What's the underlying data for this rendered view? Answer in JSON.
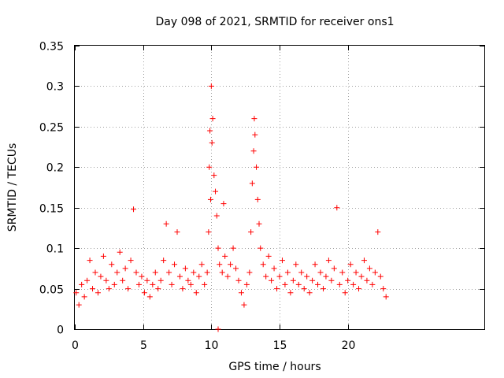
{
  "chart_data": {
    "type": "scatter",
    "title": "Day 098 of 2021, SRMTID for receiver ons1",
    "xlabel": "GPS time / hours",
    "ylabel": "SRMTID / TECUs",
    "xlim": [
      0,
      30
    ],
    "ylim": [
      0,
      0.35
    ],
    "xticks": [
      0,
      5,
      10,
      15,
      20
    ],
    "xtick_labels": [
      "0",
      "5",
      "10",
      "15",
      "20"
    ],
    "yticks": [
      0,
      0.05,
      0.1,
      0.15,
      0.2,
      0.25,
      0.3,
      0.35
    ],
    "ytick_labels": [
      "0",
      "0.05",
      "0.1",
      "0.15",
      "0.2",
      "0.25",
      "0.3",
      "0.35"
    ],
    "grid": true,
    "marker": "+",
    "series": [
      {
        "name": "SRMTID",
        "color": "#ff0000",
        "points": [
          [
            0.1,
            0.045
          ],
          [
            0.3,
            0.03
          ],
          [
            0.5,
            0.055
          ],
          [
            0.7,
            0.04
          ],
          [
            0.9,
            0.06
          ],
          [
            1.1,
            0.085
          ],
          [
            1.3,
            0.05
          ],
          [
            1.5,
            0.07
          ],
          [
            1.7,
            0.045
          ],
          [
            1.9,
            0.065
          ],
          [
            2.1,
            0.09
          ],
          [
            2.3,
            0.06
          ],
          [
            2.5,
            0.05
          ],
          [
            2.7,
            0.08
          ],
          [
            2.9,
            0.055
          ],
          [
            3.1,
            0.07
          ],
          [
            3.3,
            0.095
          ],
          [
            3.5,
            0.06
          ],
          [
            3.7,
            0.075
          ],
          [
            3.9,
            0.05
          ],
          [
            4.1,
            0.085
          ],
          [
            4.3,
            0.148
          ],
          [
            4.5,
            0.07
          ],
          [
            4.7,
            0.055
          ],
          [
            4.9,
            0.065
          ],
          [
            5.1,
            0.045
          ],
          [
            5.3,
            0.06
          ],
          [
            5.5,
            0.04
          ],
          [
            5.7,
            0.055
          ],
          [
            5.9,
            0.07
          ],
          [
            6.1,
            0.05
          ],
          [
            6.3,
            0.06
          ],
          [
            6.5,
            0.085
          ],
          [
            6.7,
            0.13
          ],
          [
            6.9,
            0.07
          ],
          [
            7.1,
            0.055
          ],
          [
            7.3,
            0.08
          ],
          [
            7.5,
            0.12
          ],
          [
            7.7,
            0.065
          ],
          [
            7.9,
            0.05
          ],
          [
            8.1,
            0.075
          ],
          [
            8.3,
            0.06
          ],
          [
            8.5,
            0.055
          ],
          [
            8.7,
            0.07
          ],
          [
            8.9,
            0.045
          ],
          [
            9.1,
            0.065
          ],
          [
            9.3,
            0.08
          ],
          [
            9.5,
            0.055
          ],
          [
            9.7,
            0.07
          ],
          [
            9.8,
            0.12
          ],
          [
            9.85,
            0.2
          ],
          [
            9.9,
            0.245
          ],
          [
            9.95,
            0.16
          ],
          [
            10.0,
            0.3
          ],
          [
            10.05,
            0.23
          ],
          [
            10.1,
            0.26
          ],
          [
            10.2,
            0.19
          ],
          [
            10.3,
            0.17
          ],
          [
            10.4,
            0.14
          ],
          [
            10.5,
            0.1
          ],
          [
            10.6,
            0.08
          ],
          [
            10.8,
            0.07
          ],
          [
            10.9,
            0.155
          ],
          [
            11.0,
            0.09
          ],
          [
            11.2,
            0.065
          ],
          [
            11.4,
            0.08
          ],
          [
            11.6,
            0.1
          ],
          [
            11.8,
            0.075
          ],
          [
            12.0,
            0.06
          ],
          [
            12.2,
            0.045
          ],
          [
            12.4,
            0.03
          ],
          [
            12.6,
            0.055
          ],
          [
            12.8,
            0.07
          ],
          [
            12.9,
            0.12
          ],
          [
            13.0,
            0.18
          ],
          [
            13.1,
            0.22
          ],
          [
            13.15,
            0.26
          ],
          [
            13.2,
            0.24
          ],
          [
            13.3,
            0.2
          ],
          [
            13.4,
            0.16
          ],
          [
            13.5,
            0.13
          ],
          [
            13.6,
            0.1
          ],
          [
            13.8,
            0.08
          ],
          [
            14.0,
            0.065
          ],
          [
            14.2,
            0.09
          ],
          [
            14.4,
            0.06
          ],
          [
            14.6,
            0.075
          ],
          [
            14.8,
            0.05
          ],
          [
            15.0,
            0.065
          ],
          [
            15.2,
            0.085
          ],
          [
            15.4,
            0.055
          ],
          [
            15.6,
            0.07
          ],
          [
            15.8,
            0.045
          ],
          [
            16.0,
            0.06
          ],
          [
            16.2,
            0.08
          ],
          [
            16.4,
            0.055
          ],
          [
            16.6,
            0.07
          ],
          [
            16.8,
            0.05
          ],
          [
            17.0,
            0.065
          ],
          [
            17.2,
            0.045
          ],
          [
            17.4,
            0.06
          ],
          [
            17.6,
            0.08
          ],
          [
            17.8,
            0.055
          ],
          [
            18.0,
            0.07
          ],
          [
            18.2,
            0.05
          ],
          [
            18.4,
            0.065
          ],
          [
            18.6,
            0.085
          ],
          [
            18.8,
            0.06
          ],
          [
            19.0,
            0.075
          ],
          [
            19.2,
            0.15
          ],
          [
            19.4,
            0.055
          ],
          [
            19.6,
            0.07
          ],
          [
            19.8,
            0.045
          ],
          [
            20.0,
            0.06
          ],
          [
            20.2,
            0.08
          ],
          [
            20.4,
            0.055
          ],
          [
            20.6,
            0.07
          ],
          [
            20.8,
            0.05
          ],
          [
            21.0,
            0.065
          ],
          [
            21.2,
            0.085
          ],
          [
            21.4,
            0.06
          ],
          [
            21.6,
            0.075
          ],
          [
            21.8,
            0.055
          ],
          [
            22.0,
            0.07
          ],
          [
            22.2,
            0.12
          ],
          [
            22.4,
            0.065
          ],
          [
            22.6,
            0.05
          ],
          [
            22.8,
            0.04
          ],
          [
            10.5,
            0.0
          ]
        ]
      }
    ]
  }
}
